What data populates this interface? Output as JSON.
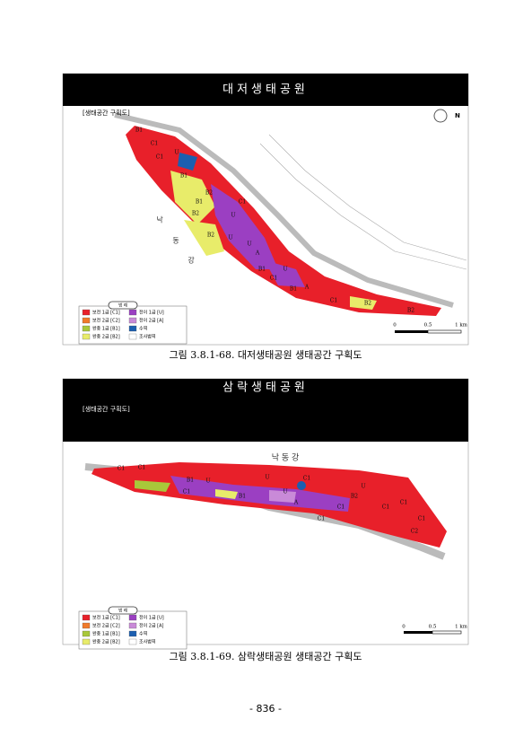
{
  "figures": [
    {
      "header": "대저생태공원",
      "subtitle": "[생태공간 구획도]",
      "compass": "N",
      "river_label": [
        "낙",
        "동",
        "강"
      ],
      "map_labels": [
        "B1",
        "C1",
        "C1",
        "U",
        "B1",
        "B2",
        "B1",
        "B2",
        "U",
        "C1",
        "U",
        "B2",
        "U",
        "A",
        "B1",
        "U",
        "C1",
        "B1",
        "A",
        "C1",
        "B2",
        "B2"
      ],
      "legend": {
        "title": "범 례",
        "items": [
          {
            "label": "보전 1급 [C1]",
            "color": "#e8202a"
          },
          {
            "label": "전이 1급 [U]",
            "color": "#9b3fc2"
          },
          {
            "label": "보전 2급 [C2]",
            "color": "#f07a2a"
          },
          {
            "label": "전이 2급 [A]",
            "color": "#c98ad8"
          },
          {
            "label": "완충 1급 [B1]",
            "color": "#a8c83a"
          },
          {
            "label": "수역",
            "color": "#1c5fb0"
          },
          {
            "label": "완충 2급 [B2]",
            "color": "#e8ec6a"
          },
          {
            "label": "조사범역",
            "color": "#ffffff"
          }
        ]
      },
      "scale": [
        "0",
        "0.5",
        "1 km"
      ],
      "caption": "그림 3.8.1-68. 대저생태공원 생태공간 구획도"
    },
    {
      "header": "삼락생태공원",
      "subtitle": "[생태공간 구획도]",
      "compass": null,
      "river_label": [
        "낙 동 강"
      ],
      "map_labels": [
        "C1",
        "C1",
        "B1",
        "U",
        "C1",
        "U",
        "B1",
        "U",
        "C1",
        "A",
        "C1",
        "C1",
        "B2",
        "U",
        "C1",
        "C1",
        "C1",
        "C2"
      ],
      "legend": {
        "title": "범 례",
        "items": [
          {
            "label": "보전 1급 [C1]",
            "color": "#e8202a"
          },
          {
            "label": "전이 1급 [U]",
            "color": "#9b3fc2"
          },
          {
            "label": "보전 2급 [C2]",
            "color": "#f07a2a"
          },
          {
            "label": "전이 2급 [A]",
            "color": "#c98ad8"
          },
          {
            "label": "완충 1급 [B1]",
            "color": "#a8c83a"
          },
          {
            "label": "수역",
            "color": "#1c5fb0"
          },
          {
            "label": "완충 2급 [B2]",
            "color": "#e8ec6a"
          },
          {
            "label": "조사범역",
            "color": "#ffffff"
          }
        ]
      },
      "scale": [
        "0",
        "0.5",
        "1 km"
      ],
      "caption": "그림 3.8.1-69. 삼락생태공원 생태공간 구획도"
    }
  ],
  "page_number": "- 836 -"
}
